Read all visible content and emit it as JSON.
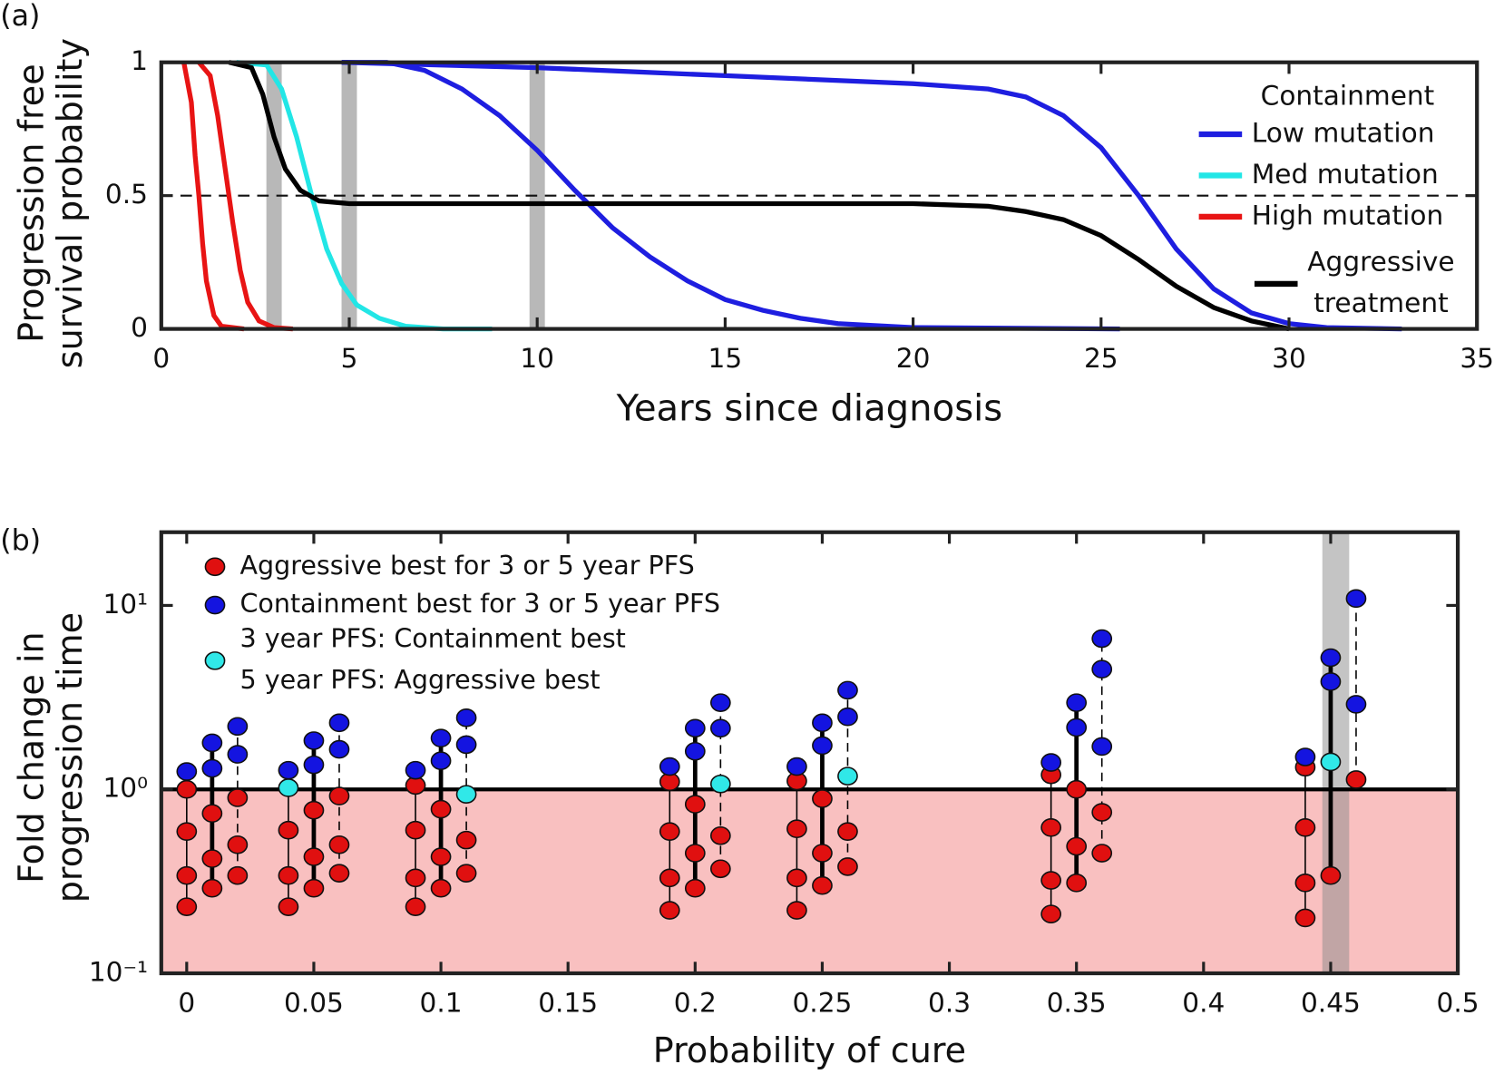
{
  "chart_data": [
    {
      "type": "line",
      "panel_label": "(a)",
      "xlabel": "Years since diagnosis",
      "ylabel": [
        "Progression free",
        "survival probability"
      ],
      "xlim": [
        0,
        35
      ],
      "xticks": [
        0,
        5,
        10,
        15,
        20,
        25,
        30,
        35
      ],
      "ylim": [
        0,
        1
      ],
      "yticks": [
        0,
        0.5,
        1
      ],
      "hline": 0.5,
      "vbands": [
        3,
        5,
        10
      ],
      "legend_title": "Containment",
      "legend": "upper right",
      "series": [
        {
          "name": "Low mutation",
          "color": "#1e1ee0",
          "lines": [
            {
              "x": [
                4.8,
                6,
                7,
                8,
                9,
                10,
                11,
                12,
                13,
                14,
                15,
                16,
                17,
                18,
                20,
                25.5
              ],
              "values": [
                1,
                1,
                0.97,
                0.9,
                0.8,
                0.67,
                0.52,
                0.38,
                0.27,
                0.18,
                0.11,
                0.07,
                0.04,
                0.02,
                0.005,
                0
              ]
            },
            {
              "x": [
                4.8,
                10,
                15,
                20,
                22,
                23,
                24,
                25,
                26,
                27,
                28,
                29,
                30,
                31,
                33
              ],
              "values": [
                1,
                0.98,
                0.95,
                0.92,
                0.9,
                0.87,
                0.8,
                0.68,
                0.5,
                0.3,
                0.15,
                0.06,
                0.02,
                0.005,
                0
              ]
            }
          ]
        },
        {
          "name": "Med mutation",
          "color": "#22e6e6",
          "lines": [
            {
              "x": [
                2.0,
                2.8,
                3.2,
                3.6,
                4.0,
                4.4,
                4.8,
                5.2,
                5.8,
                6.5,
                7.5,
                8.8
              ],
              "values": [
                1,
                0.99,
                0.9,
                0.72,
                0.5,
                0.3,
                0.17,
                0.09,
                0.04,
                0.01,
                0,
                0
              ]
            }
          ]
        },
        {
          "name": "High mutation",
          "color": "#e81414",
          "lines": [
            {
              "x": [
                0.6,
                0.8,
                0.9,
                1.0,
                1.1,
                1.2,
                1.4,
                1.6,
                2.2
              ],
              "values": [
                1,
                0.85,
                0.65,
                0.5,
                0.32,
                0.18,
                0.05,
                0.01,
                0
              ]
            },
            {
              "x": [
                1.0,
                1.3,
                1.5,
                1.7,
                1.8,
                1.9,
                2.1,
                2.3,
                2.6,
                3.0,
                3.5
              ],
              "values": [
                1,
                0.95,
                0.8,
                0.6,
                0.5,
                0.4,
                0.22,
                0.1,
                0.03,
                0.005,
                0
              ]
            }
          ]
        },
        {
          "name": [
            "Aggressive",
            "treatment"
          ],
          "color": "#000000",
          "lines": [
            {
              "x": [
                1.8,
                2.4,
                2.7,
                3.0,
                3.3,
                3.7,
                4.2,
                5,
                10,
                15,
                20,
                22,
                23,
                24,
                25,
                26,
                27,
                28,
                29,
                30
              ],
              "values": [
                1,
                0.98,
                0.88,
                0.72,
                0.6,
                0.52,
                0.48,
                0.47,
                0.47,
                0.47,
                0.47,
                0.46,
                0.44,
                0.41,
                0.35,
                0.26,
                0.16,
                0.08,
                0.03,
                0
              ]
            }
          ]
        }
      ]
    },
    {
      "type": "scatter",
      "panel_label": "(b)",
      "xlabel": "Probability of cure",
      "ylabel": [
        "Fold change in",
        "progression time"
      ],
      "xlim": [
        -0.01,
        0.5
      ],
      "xticks": [
        0,
        0.05,
        0.1,
        0.15,
        0.2,
        0.25,
        0.3,
        0.35,
        0.4,
        0.45,
        0.5
      ],
      "ylim": [
        0.1,
        25
      ],
      "log_y": true,
      "yticks": [
        {
          "value": 0.1,
          "label": "10⁻¹"
        },
        {
          "value": 1,
          "label": "10⁰"
        },
        {
          "value": 10,
          "label": "10¹"
        }
      ],
      "hline": 1,
      "shade_below": 1,
      "shade_color": "#f9c0c0",
      "vband": 0.452,
      "stem_styles": [
        "thin",
        "thick",
        "dashed"
      ],
      "legend": "upper left",
      "series": [
        {
          "name": [
            "Aggressive best for 3 or 5 year PFS"
          ],
          "color": "#e01010",
          "x": [
            0,
            0,
            0,
            0,
            0.01,
            0.01,
            0.01,
            0.02,
            0.02,
            0.02,
            0.04,
            0.04,
            0.04,
            0.05,
            0.05,
            0.05,
            0.06,
            0.06,
            0.06,
            0.09,
            0.09,
            0.09,
            0.09,
            0.1,
            0.1,
            0.1,
            0.11,
            0.11,
            0.19,
            0.19,
            0.19,
            0.19,
            0.2,
            0.2,
            0.2,
            0.21,
            0.21,
            0.24,
            0.24,
            0.24,
            0.24,
            0.25,
            0.25,
            0.25,
            0.26,
            0.26,
            0.34,
            0.34,
            0.34,
            0.34,
            0.35,
            0.35,
            0.35,
            0.36,
            0.36,
            0.44,
            0.44,
            0.44,
            0.44,
            0.45,
            0.46
          ],
          "values": [
            1.0,
            0.59,
            0.34,
            0.23,
            0.74,
            0.42,
            0.29,
            0.9,
            0.5,
            0.34,
            0.6,
            0.34,
            0.23,
            0.77,
            0.43,
            0.29,
            0.92,
            0.5,
            0.35,
            1.05,
            0.6,
            0.33,
            0.23,
            0.78,
            0.43,
            0.29,
            0.53,
            0.35,
            1.1,
            0.59,
            0.33,
            0.22,
            0.83,
            0.45,
            0.29,
            0.56,
            0.37,
            1.11,
            0.61,
            0.33,
            0.22,
            0.89,
            0.45,
            0.3,
            0.59,
            0.38,
            1.2,
            0.62,
            0.32,
            0.21,
            1.0,
            0.49,
            0.31,
            0.75,
            0.45,
            1.32,
            0.62,
            0.31,
            0.2,
            0.34,
            1.13
          ]
        },
        {
          "name": [
            "Containment best for 3 or 5 year PFS"
          ],
          "color": "#1414e0",
          "x": [
            0,
            0.01,
            0.01,
            0.02,
            0.02,
            0.04,
            0.05,
            0.05,
            0.06,
            0.06,
            0.09,
            0.1,
            0.1,
            0.11,
            0.11,
            0.19,
            0.2,
            0.2,
            0.21,
            0.21,
            0.24,
            0.25,
            0.25,
            0.26,
            0.26,
            0.34,
            0.35,
            0.35,
            0.36,
            0.36,
            0.36,
            0.44,
            0.45,
            0.45,
            0.46,
            0.46
          ],
          "values": [
            1.25,
            1.79,
            1.3,
            2.2,
            1.55,
            1.27,
            1.84,
            1.36,
            2.3,
            1.65,
            1.27,
            1.9,
            1.43,
            2.45,
            1.75,
            1.33,
            2.15,
            1.61,
            2.96,
            2.15,
            1.33,
            2.3,
            1.73,
            3.46,
            2.48,
            1.4,
            2.96,
            2.17,
            6.6,
            4.5,
            1.71,
            1.5,
            5.2,
            3.85,
            10.9,
            2.9
          ]
        },
        {
          "name": [
            "3 year PFS: Containment best",
            "5 year PFS: Aggressive best"
          ],
          "color": "#30e8e8",
          "x": [
            0.04,
            0.11,
            0.21,
            0.26,
            0.45
          ],
          "values": [
            1.02,
            0.94,
            1.07,
            1.18,
            1.41
          ]
        }
      ]
    }
  ]
}
